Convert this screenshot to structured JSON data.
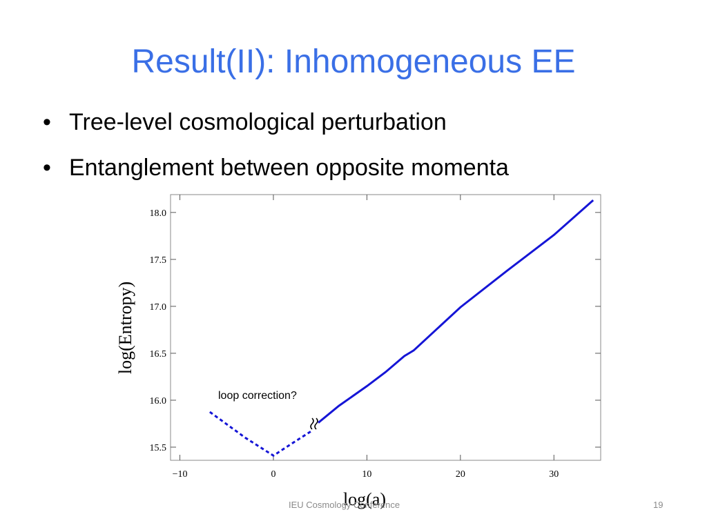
{
  "slide": {
    "title": "Result(II): Inhomogeneous EE",
    "bullets": [
      "Tree-level cosmological perturbation",
      "Entanglement between opposite momenta"
    ],
    "footer": "IEU Cosmology Conference",
    "page_number": "19"
  },
  "chart_data": {
    "type": "line",
    "x_label": "log(a)",
    "y_label": "log(Entropy)",
    "annotations": [
      "loop correction?"
    ],
    "series": [
      {
        "color": "#1515d6",
        "style": "dashed",
        "x": [
          -6.8,
          -3,
          0,
          2,
          4.2
        ],
        "values": [
          15.875,
          15.6,
          15.41,
          15.54,
          15.68
        ]
      },
      {
        "color": "#1515d6",
        "style": "solid",
        "x": [
          4.8,
          7,
          10,
          12,
          14,
          15,
          20,
          25,
          30,
          34.2
        ],
        "values": [
          15.76,
          15.94,
          16.15,
          16.3,
          16.47,
          16.53,
          16.99,
          17.38,
          17.76,
          18.13
        ]
      }
    ],
    "xlim": [
      -11,
      35
    ],
    "ylim": [
      15.36,
      18.19
    ],
    "xticks": [
      {
        "value": -10,
        "label": "−10"
      },
      0,
      10,
      20,
      30
    ],
    "yticks": [
      {
        "value": 15.5,
        "label": "15.5"
      },
      {
        "value": 16,
        "label": "16.0"
      },
      {
        "value": 16.5,
        "label": "16.5"
      },
      {
        "value": 17,
        "label": "17.0"
      },
      {
        "value": 17.5,
        "label": "17.5"
      },
      {
        "value": 18,
        "label": "18.0"
      }
    ],
    "grid": false
  }
}
